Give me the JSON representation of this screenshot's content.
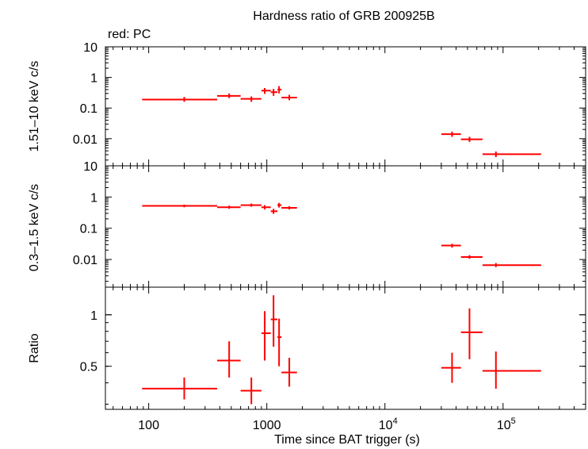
{
  "chart_data": {
    "type": "scatter",
    "title": "Hardness ratio of GRB 200925B",
    "legend_label": "red: PC",
    "xlabel": "Time since BAT trigger (s)",
    "x_scale": "log",
    "xlim": [
      43,
      500000
    ],
    "x_ticks": [
      {
        "value": 100,
        "label": "100"
      },
      {
        "value": 1000,
        "label": "1000"
      },
      {
        "value": 10000,
        "label": "10",
        "exp": "4"
      },
      {
        "value": 100000,
        "label": "10",
        "exp": "5"
      }
    ],
    "series_color": "#ff0000",
    "panels": [
      {
        "id": "hard",
        "ylabel": "1.51–10 keV c/s",
        "y_scale": "log",
        "ylim": [
          0.0013,
          10
        ],
        "y_ticks": [
          {
            "value": 10,
            "label": "10"
          },
          {
            "value": 1,
            "label": "1"
          },
          {
            "value": 0.1,
            "label": "0.1"
          },
          {
            "value": 0.01,
            "label": "0.01"
          }
        ],
        "points": [
          {
            "x": 200,
            "xlo": 88,
            "xhi": 380,
            "y": 0.19,
            "ylo": 0.16,
            "yhi": 0.23
          },
          {
            "x": 480,
            "xlo": 380,
            "xhi": 600,
            "y": 0.25,
            "ylo": 0.21,
            "yhi": 0.3
          },
          {
            "x": 740,
            "xlo": 600,
            "xhi": 900,
            "y": 0.2,
            "ylo": 0.16,
            "yhi": 0.24
          },
          {
            "x": 960,
            "xlo": 900,
            "xhi": 1080,
            "y": 0.37,
            "ylo": 0.29,
            "yhi": 0.45
          },
          {
            "x": 1140,
            "xlo": 1080,
            "xhi": 1230,
            "y": 0.33,
            "ylo": 0.25,
            "yhi": 0.42
          },
          {
            "x": 1270,
            "xlo": 1230,
            "xhi": 1330,
            "y": 0.4,
            "ylo": 0.3,
            "yhi": 0.52
          },
          {
            "x": 1550,
            "xlo": 1330,
            "xhi": 1800,
            "y": 0.22,
            "ylo": 0.18,
            "yhi": 0.27
          },
          {
            "x": 37000,
            "xlo": 30000,
            "xhi": 44000,
            "y": 0.014,
            "ylo": 0.0115,
            "yhi": 0.017
          },
          {
            "x": 52000,
            "xlo": 44000,
            "xhi": 67000,
            "y": 0.0095,
            "ylo": 0.0078,
            "yhi": 0.0115
          },
          {
            "x": 87000,
            "xlo": 67000,
            "xhi": 210000,
            "y": 0.0031,
            "ylo": 0.0025,
            "yhi": 0.0038
          }
        ]
      },
      {
        "id": "soft",
        "ylabel": "0.3–1.5 keV c/s",
        "y_scale": "log",
        "ylim": [
          0.0013,
          10
        ],
        "y_ticks": [
          {
            "value": 10,
            "label": "10"
          },
          {
            "value": 1,
            "label": "1"
          },
          {
            "value": 0.1,
            "label": "0.1"
          },
          {
            "value": 0.01,
            "label": "0.01"
          }
        ],
        "points": [
          {
            "x": 200,
            "xlo": 88,
            "xhi": 380,
            "y": 0.52,
            "ylo": 0.47,
            "yhi": 0.57
          },
          {
            "x": 480,
            "xlo": 380,
            "xhi": 600,
            "y": 0.47,
            "ylo": 0.42,
            "yhi": 0.53
          },
          {
            "x": 740,
            "xlo": 600,
            "xhi": 900,
            "y": 0.55,
            "ylo": 0.49,
            "yhi": 0.62
          },
          {
            "x": 960,
            "xlo": 900,
            "xhi": 1080,
            "y": 0.47,
            "ylo": 0.4,
            "yhi": 0.55
          },
          {
            "x": 1140,
            "xlo": 1080,
            "xhi": 1230,
            "y": 0.35,
            "ylo": 0.29,
            "yhi": 0.42
          },
          {
            "x": 1270,
            "xlo": 1230,
            "xhi": 1330,
            "y": 0.55,
            "ylo": 0.46,
            "yhi": 0.65
          },
          {
            "x": 1550,
            "xlo": 1330,
            "xhi": 1800,
            "y": 0.45,
            "ylo": 0.4,
            "yhi": 0.51
          },
          {
            "x": 37000,
            "xlo": 30000,
            "xhi": 44000,
            "y": 0.028,
            "ylo": 0.024,
            "yhi": 0.032
          },
          {
            "x": 52000,
            "xlo": 44000,
            "xhi": 67000,
            "y": 0.012,
            "ylo": 0.0105,
            "yhi": 0.0138
          },
          {
            "x": 87000,
            "xlo": 67000,
            "xhi": 210000,
            "y": 0.0066,
            "ylo": 0.0057,
            "yhi": 0.0077
          }
        ]
      },
      {
        "id": "ratio",
        "ylabel": "Ratio",
        "y_scale": "log",
        "ylim": [
          0.28,
          1.45
        ],
        "y_ticks": [
          {
            "value": 1,
            "label": "1"
          },
          {
            "value": 0.5,
            "label": "0.5"
          }
        ],
        "points": [
          {
            "x": 200,
            "xlo": 88,
            "xhi": 380,
            "y": 0.37,
            "ylo": 0.32,
            "yhi": 0.43
          },
          {
            "x": 480,
            "xlo": 380,
            "xhi": 600,
            "y": 0.54,
            "ylo": 0.43,
            "yhi": 0.7
          },
          {
            "x": 740,
            "xlo": 600,
            "xhi": 900,
            "y": 0.36,
            "ylo": 0.3,
            "yhi": 0.43
          },
          {
            "x": 960,
            "xlo": 900,
            "xhi": 1080,
            "y": 0.78,
            "ylo": 0.54,
            "yhi": 1.05
          },
          {
            "x": 1140,
            "xlo": 1080,
            "xhi": 1230,
            "y": 0.94,
            "ylo": 0.65,
            "yhi": 1.3
          },
          {
            "x": 1270,
            "xlo": 1230,
            "xhi": 1330,
            "y": 0.74,
            "ylo": 0.5,
            "yhi": 0.95
          },
          {
            "x": 1550,
            "xlo": 1330,
            "xhi": 1800,
            "y": 0.46,
            "ylo": 0.38,
            "yhi": 0.56
          },
          {
            "x": 37000,
            "xlo": 30000,
            "xhi": 44000,
            "y": 0.49,
            "ylo": 0.4,
            "yhi": 0.6
          },
          {
            "x": 52000,
            "xlo": 44000,
            "xhi": 67000,
            "y": 0.79,
            "ylo": 0.55,
            "yhi": 1.09
          },
          {
            "x": 87000,
            "xlo": 67000,
            "xhi": 210000,
            "y": 0.47,
            "ylo": 0.37,
            "yhi": 0.61
          }
        ]
      }
    ]
  }
}
